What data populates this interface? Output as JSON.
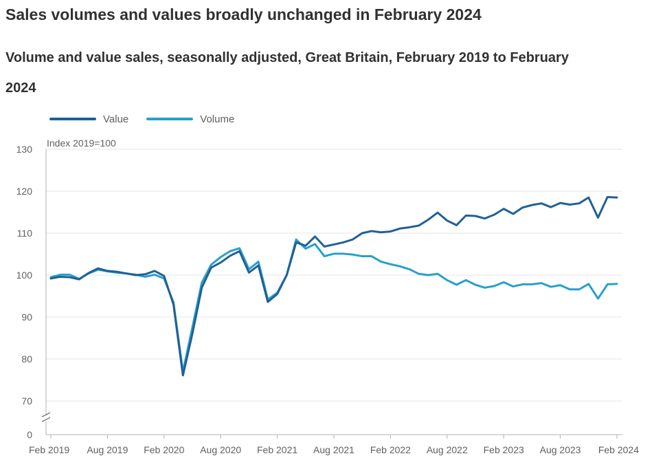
{
  "title": "Sales volumes and values broadly unchanged in February 2024",
  "subtitle": "Volume and value sales, seasonally adjusted, Great Britain, February 2019 to February 2024",
  "colors": {
    "value": "#206095",
    "volume": "#27a0cc",
    "grid": "#e6e6e6",
    "axis": "#b3b3b3"
  },
  "chart_data": {
    "type": "line",
    "title": "Sales volumes and values broadly unchanged in February 2024",
    "subtitle": "Volume and value sales, seasonally adjusted, Great Britain, February 2019 to February 2024",
    "ylabel": "Index 2019=100",
    "xlabel": "",
    "ylim": [
      0,
      130
    ],
    "y_axis_break": [
      0,
      70
    ],
    "yticks": [
      0,
      70,
      80,
      90,
      100,
      110,
      120,
      130
    ],
    "grid": true,
    "legend_position": "top-left",
    "x_start": "Feb 2019",
    "x_end": "Feb 2024",
    "x_tick_labels": [
      "Feb 2019",
      "Aug 2019",
      "Feb 2020",
      "Aug 2020",
      "Feb 2021",
      "Aug 2021",
      "Feb 2022",
      "Aug 2022",
      "Feb 2023",
      "Aug 2023",
      "Feb 2024"
    ],
    "x_tick_index": [
      0,
      6,
      12,
      18,
      24,
      30,
      36,
      42,
      48,
      54,
      60
    ],
    "series": [
      {
        "name": "Value",
        "key": "value",
        "values": [
          99.2,
          99.6,
          99.5,
          99.0,
          100.5,
          101.6,
          101.0,
          100.8,
          100.4,
          100.0,
          100.2,
          101.0,
          99.8,
          93.0,
          76.1,
          86.0,
          97.0,
          101.8,
          103.0,
          104.6,
          105.7,
          100.6,
          102.3,
          93.6,
          95.5,
          100.0,
          107.8,
          107.0,
          109.2,
          106.8,
          107.3,
          107.8,
          108.5,
          110.0,
          110.5,
          110.2,
          110.4,
          111.1,
          111.4,
          111.8,
          113.2,
          114.9,
          113.0,
          111.9,
          114.2,
          114.1,
          113.5,
          114.4,
          115.8,
          114.6,
          116.1,
          116.7,
          117.1,
          116.2,
          117.2,
          116.8,
          117.1,
          118.5,
          113.7,
          118.6,
          118.5
        ]
      },
      {
        "name": "Volume",
        "key": "volume",
        "values": [
          99.5,
          100.1,
          100.1,
          99.1,
          100.4,
          101.3,
          100.9,
          100.6,
          100.4,
          100.1,
          99.6,
          100.1,
          99.2,
          93.5,
          77.0,
          87.5,
          98.2,
          102.5,
          104.3,
          105.7,
          106.4,
          101.4,
          103.2,
          94.2,
          95.8,
          100.0,
          108.5,
          106.3,
          107.4,
          104.5,
          105.1,
          105.1,
          104.9,
          104.5,
          104.5,
          103.2,
          102.6,
          102.1,
          101.4,
          100.3,
          100.0,
          100.3,
          98.8,
          97.7,
          98.8,
          97.7,
          97.0,
          97.4,
          98.3,
          97.3,
          97.8,
          97.8,
          98.1,
          97.2,
          97.6,
          96.6,
          96.6,
          97.9,
          94.4,
          97.8,
          97.9
        ]
      }
    ]
  }
}
